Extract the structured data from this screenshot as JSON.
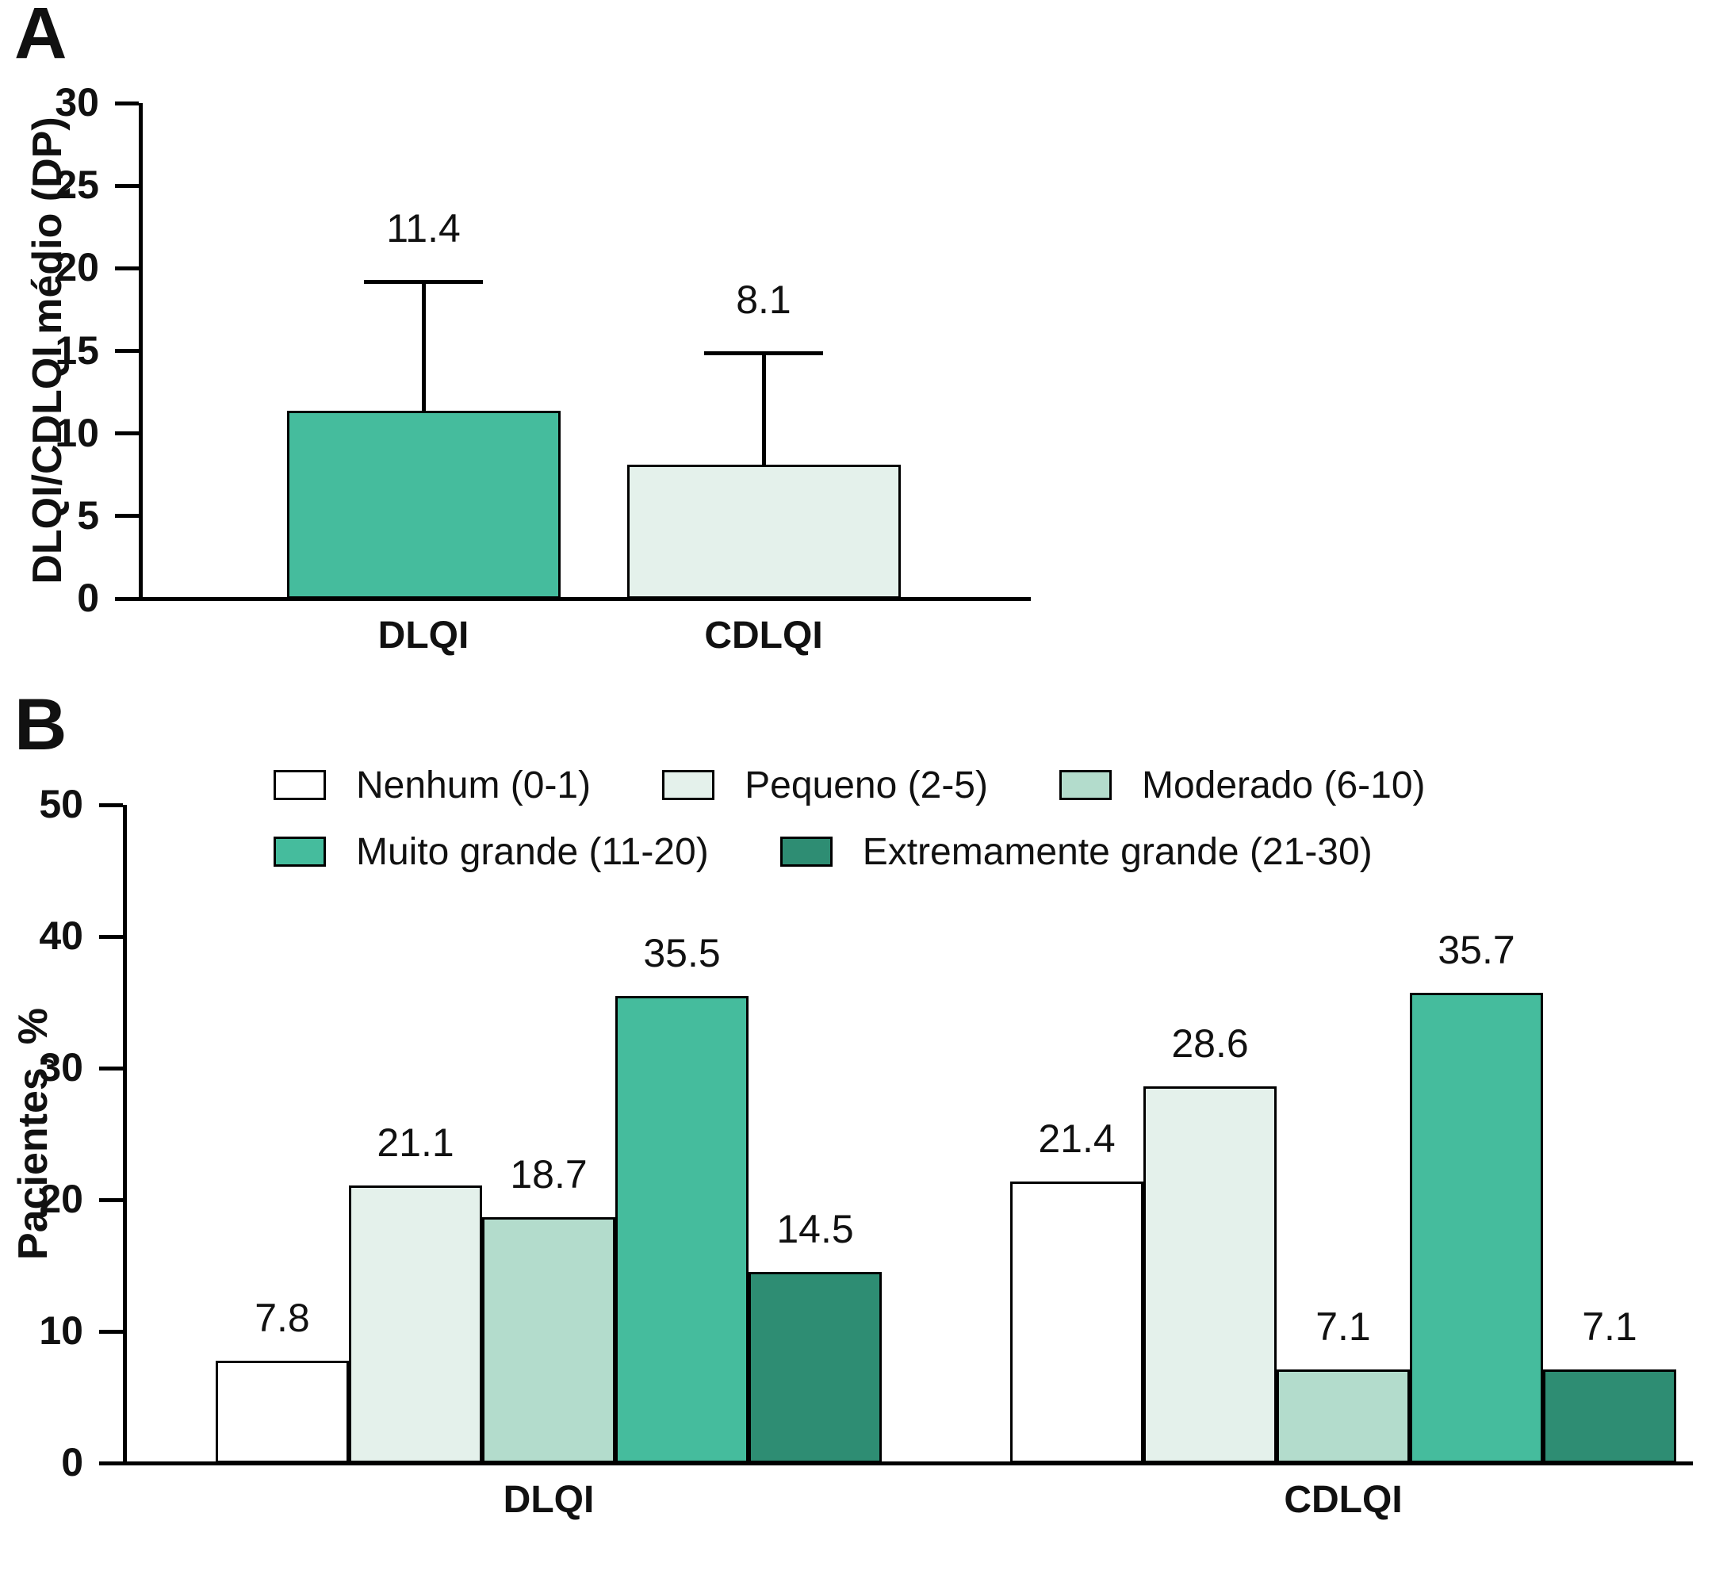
{
  "panels": {
    "a_letter": "A",
    "b_letter": "B"
  },
  "chart_data": [
    {
      "type": "bar",
      "panel": "A",
      "title": "",
      "xlabel": "",
      "ylabel": "DLQI/CDLQI médio (DP)",
      "ylim": [
        0,
        30
      ],
      "ytick_step": 5,
      "grid": false,
      "categories": [
        "DLQI",
        "CDLQI"
      ],
      "values": [
        11.4,
        8.1
      ],
      "value_labels": [
        "11.4",
        "8.1"
      ],
      "error_bar_tops": [
        19.2,
        14.9
      ],
      "bar_colors": [
        "#45BC9D",
        "#E4F1EB"
      ]
    },
    {
      "type": "bar",
      "panel": "B",
      "title": "",
      "xlabel": "",
      "ylabel": "Pacientes, %",
      "ylim": [
        0,
        50
      ],
      "ytick_step": 10,
      "grid": false,
      "legend_position": "top",
      "categories": [
        "DLQI",
        "CDLQI"
      ],
      "series": [
        {
          "name": "Nenhum (0-1)",
          "color": "#FFFFFF",
          "values": [
            7.8,
            21.4
          ]
        },
        {
          "name": "Pequeno (2-5)",
          "color": "#E4F1EB",
          "values": [
            21.1,
            28.6
          ]
        },
        {
          "name": "Moderado (6-10)",
          "color": "#B3DCCC",
          "values": [
            18.7,
            7.1
          ]
        },
        {
          "name": "Muito grande (11-20)",
          "color": "#45BC9D",
          "values": [
            35.5,
            35.7
          ]
        },
        {
          "name": "Extremamente grande (21-30)",
          "color": "#2E8D73",
          "values": [
            14.5,
            7.1
          ]
        }
      ]
    }
  ]
}
